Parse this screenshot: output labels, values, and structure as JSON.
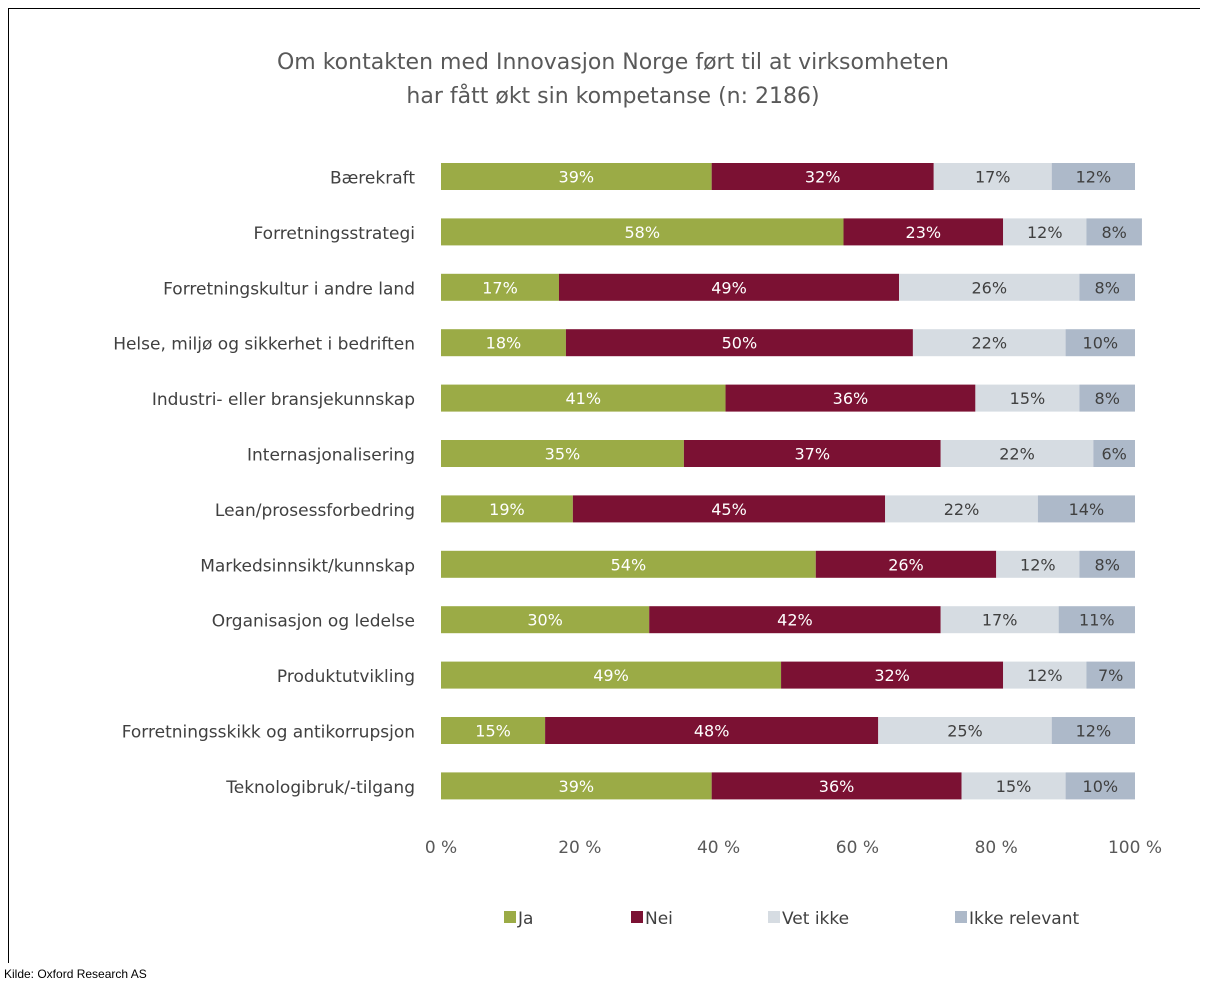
{
  "chart_data": {
    "type": "bar",
    "orientation": "horizontal",
    "stacked": true,
    "title_lines": [
      "Om kontakten med Innovasjon Norge ført til at virksomheten",
      "har fått økt sin kompetanse (n: 2186)"
    ],
    "categories": [
      "Bærekraft",
      "Forretningsstrategi",
      "Forretningskultur i andre land",
      "Helse, miljø og sikkerhet i bedriften",
      "Industri- eller bransjekunnskap",
      "Internasjonalisering",
      "Lean/prosessforbedring",
      "Markedsinnsikt/kunnskap",
      "Organisasjon og ledelse",
      "Produktutvikling",
      "Forretningsskikk og antikorrupsjon",
      "Teknologibruk/-tilgang"
    ],
    "series": [
      {
        "name": "Ja",
        "color": "#9bab46",
        "label_color": "#ffffff",
        "values": [
          39,
          58,
          17,
          18,
          41,
          35,
          19,
          54,
          30,
          49,
          15,
          39
        ]
      },
      {
        "name": "Nei",
        "color": "#7b1133",
        "label_color": "#ffffff",
        "values": [
          32,
          23,
          49,
          50,
          36,
          37,
          45,
          26,
          42,
          32,
          48,
          36
        ]
      },
      {
        "name": "Vet ikke",
        "color": "#d6dce2",
        "label_color": "#404040",
        "values": [
          17,
          12,
          26,
          22,
          15,
          22,
          22,
          12,
          17,
          12,
          25,
          15
        ]
      },
      {
        "name": "Ikke relevant",
        "color": "#adb9c9",
        "label_color": "#404040",
        "values": [
          12,
          8,
          8,
          10,
          8,
          6,
          14,
          8,
          11,
          7,
          12,
          10
        ]
      }
    ],
    "x_ticks": [
      "0 %",
      "20 %",
      "40 %",
      "60 %",
      "80 %",
      "100 %"
    ],
    "xlim": [
      0,
      100
    ],
    "label_suffix": "%",
    "legend_position": "bottom",
    "grid": false
  },
  "source": "Kilde: Oxford Research AS"
}
